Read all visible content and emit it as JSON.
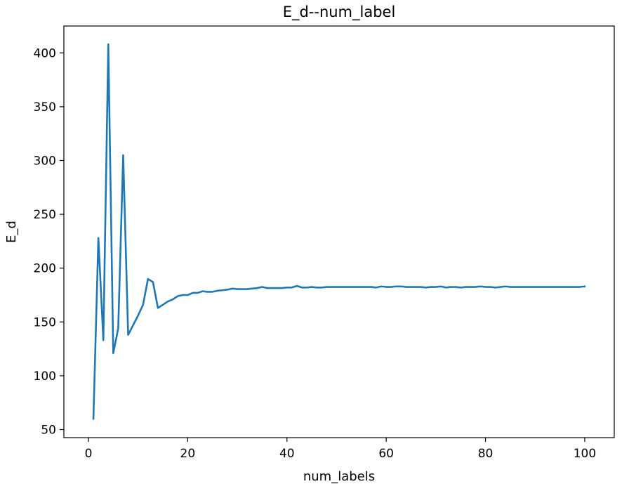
{
  "chart_data": {
    "type": "line",
    "title": "E_d--num_label",
    "xlabel": "num_labels",
    "ylabel": "E_d",
    "xlim": [
      -4.95,
      105.95
    ],
    "ylim": [
      42.5,
      425
    ],
    "xticks": [
      0,
      20,
      40,
      60,
      80,
      100
    ],
    "yticks": [
      50,
      100,
      150,
      200,
      250,
      300,
      350,
      400
    ],
    "grid": false,
    "line_color": "#1f77b4",
    "series": [
      {
        "x": [
          1,
          2,
          3,
          4,
          5,
          6,
          7,
          8,
          9,
          10,
          11,
          12,
          13,
          14,
          15,
          16,
          17,
          18,
          19,
          20,
          21,
          22,
          23,
          24,
          25,
          26,
          27,
          28,
          29,
          30,
          31,
          32,
          33,
          34,
          35,
          36,
          37,
          38,
          39,
          40,
          41,
          42,
          43,
          44,
          45,
          46,
          47,
          48,
          49,
          50,
          51,
          52,
          53,
          54,
          55,
          56,
          57,
          58,
          59,
          60,
          61,
          62,
          63,
          64,
          65,
          66,
          67,
          68,
          69,
          70,
          71,
          72,
          73,
          74,
          75,
          76,
          77,
          78,
          79,
          80,
          81,
          82,
          83,
          84,
          85,
          86,
          87,
          88,
          89,
          90,
          91,
          92,
          93,
          94,
          95,
          96,
          97,
          98,
          99,
          100
        ],
        "values": [
          60,
          228,
          133,
          408,
          121,
          144,
          305,
          138,
          147,
          156,
          166,
          190,
          187,
          163,
          166,
          169,
          171,
          174,
          175,
          175,
          177,
          177,
          178.5,
          178,
          178,
          179,
          179.5,
          180,
          181,
          180.5,
          180.5,
          180.5,
          181,
          181.5,
          182.5,
          181.5,
          181.5,
          181.5,
          181.5,
          182,
          182,
          183.5,
          182,
          182,
          182.5,
          182,
          182,
          182.5,
          182.5,
          182.5,
          182.5,
          182.5,
          182.5,
          182.5,
          182.5,
          182.5,
          182.5,
          182,
          183,
          182.5,
          182.5,
          183,
          183,
          182.5,
          182.5,
          182.5,
          182.5,
          182,
          182.5,
          182.5,
          183,
          182,
          182.5,
          182.5,
          182,
          182.5,
          182.5,
          182.5,
          183,
          182.5,
          182.5,
          182,
          182.5,
          183,
          182.5,
          182.5,
          182.5,
          182.5,
          182.5,
          182.5,
          182.5,
          182.5,
          182.5,
          182.5,
          182.5,
          182.5,
          182.5,
          182.5,
          182.5,
          183
        ]
      }
    ]
  }
}
